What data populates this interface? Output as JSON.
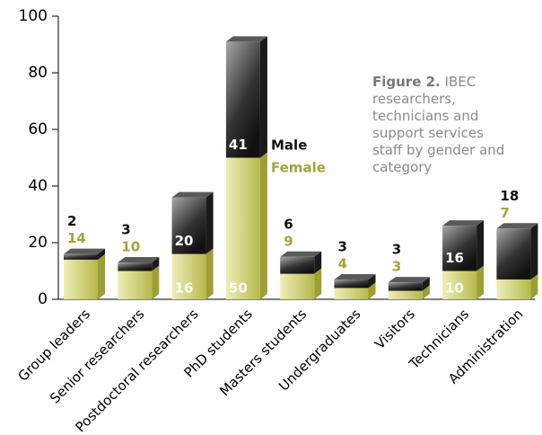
{
  "chart_data": {
    "type": "bar3d_stacked",
    "figure_label": "Figure 2.",
    "title": "IBEC researchers, technicians and support services staff by gender and category",
    "categories": [
      "Group leaders",
      "Senior researchers",
      "Postdoctoral researchers",
      "PhD students",
      "Masters students",
      "Undergraduates",
      "Visitors",
      "Technicians",
      "Administration"
    ],
    "series": [
      {
        "name": "Female",
        "color": "#b3b64a",
        "values": [
          14,
          10,
          16,
          50,
          9,
          4,
          3,
          10,
          7
        ]
      },
      {
        "name": "Male",
        "color": "#222222",
        "values": [
          2,
          3,
          20,
          41,
          6,
          3,
          3,
          16,
          18
        ]
      }
    ],
    "ylim": [
      0,
      100
    ],
    "yticks": [
      0,
      20,
      40,
      60,
      80,
      100
    ]
  }
}
